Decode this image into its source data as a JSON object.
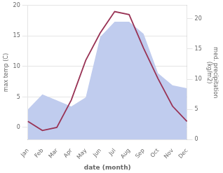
{
  "chart_data": {
    "type": "line",
    "categories": [
      "Jan",
      "Feb",
      "Mar",
      "Apr",
      "May",
      "Jun",
      "Jul",
      "Aug",
      "Sep",
      "Oct",
      "Nov",
      "Dec"
    ],
    "series": [
      {
        "type": "area",
        "color": "#c0ccee",
        "axis": "y2",
        "values": [
          5.0,
          7.5,
          6.5,
          5.5,
          7.0,
          17.0,
          19.5,
          19.5,
          17.5,
          11.0,
          9.0,
          8.5
        ]
      },
      {
        "type": "line",
        "color": "#993355",
        "values": [
          1.0,
          -0.5,
          0.0,
          4.5,
          11.0,
          15.5,
          19.0,
          18.5,
          13.0,
          8.0,
          3.5,
          1.0
        ]
      }
    ],
    "xlabel": "date (month)",
    "ylabel": "max temp (C)",
    "y2label": "med. precipitation\n(kg/m2)",
    "ylim": [
      -2,
      20
    ],
    "yticks": [
      0,
      5,
      10,
      15,
      20
    ],
    "y2lim": [
      0,
      22.2
    ],
    "y2ticks": [
      0,
      5,
      10,
      15,
      20
    ],
    "grid": true
  }
}
